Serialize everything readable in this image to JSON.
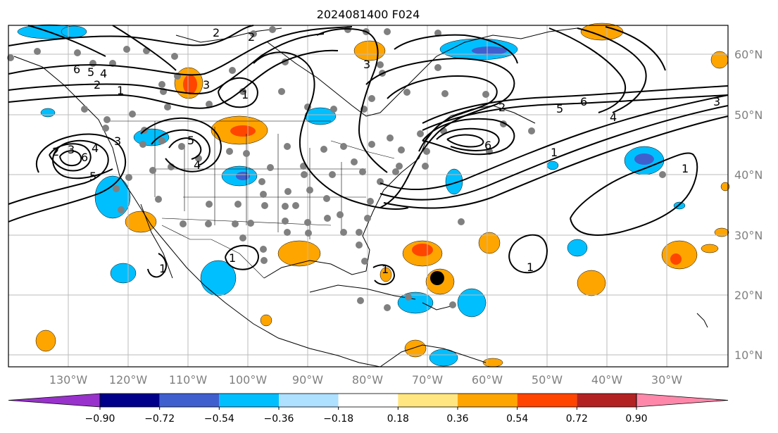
{
  "title": "2024081400 F024",
  "lon_labels": [
    "130°W",
    "120°W",
    "110°W",
    "100°W",
    "90°W",
    "80°W",
    "70°W",
    "60°W",
    "50°W",
    "40°W",
    "30°W"
  ],
  "lat_labels": [
    "60°N",
    "50°N",
    "40°N",
    "30°N",
    "20°N",
    "10°N"
  ],
  "colorbar": {
    "ticks": [
      "−0.90",
      "−0.72",
      "−0.54",
      "−0.36",
      "−0.18",
      "0.18",
      "0.36",
      "0.54",
      "0.72",
      "0.90"
    ],
    "colors": [
      "#9932cc",
      "#00008b",
      "#3f5fcf",
      "#00bfff",
      "#aee0ff",
      "#ffffff",
      "#ffe680",
      "#ffa500",
      "#ff4500",
      "#b22222",
      "#ff88aa"
    ]
  },
  "contour_labels": [
    "6",
    "5",
    "4",
    "2",
    "1",
    "2",
    "3",
    "4",
    "6",
    "5",
    "3",
    "5",
    "4",
    "2",
    "2",
    "3",
    "3",
    "1",
    "5",
    "6",
    "4",
    "3",
    "2",
    "6",
    "1",
    "1",
    "1",
    "1",
    "1",
    "1"
  ],
  "storm_marker": "hurricane-center"
}
